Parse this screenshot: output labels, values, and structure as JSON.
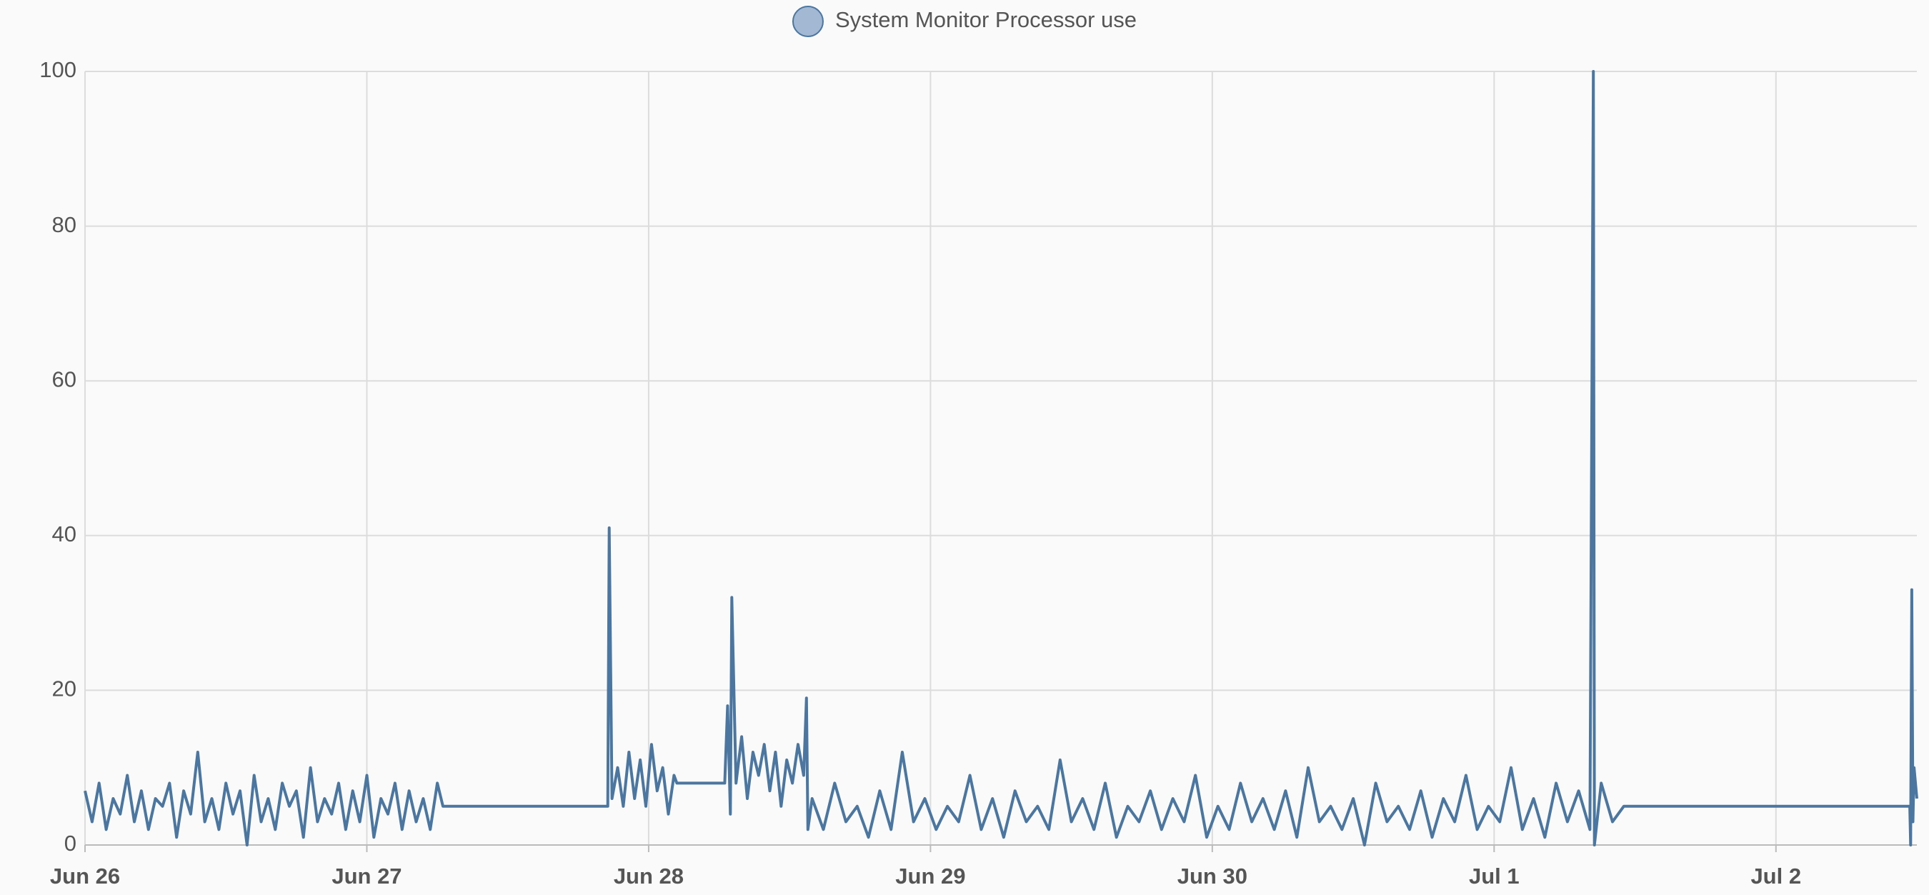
{
  "chart_data": {
    "type": "line",
    "series": [
      {
        "name": "System Monitor Processor use",
        "color": "#4a76a0",
        "x": [
          0,
          0.025,
          0.05,
          0.075,
          0.1,
          0.125,
          0.15,
          0.175,
          0.2,
          0.225,
          0.25,
          0.275,
          0.3,
          0.325,
          0.35,
          0.375,
          0.4,
          0.425,
          0.45,
          0.475,
          0.5,
          0.525,
          0.55,
          0.575,
          0.6,
          0.625,
          0.65,
          0.675,
          0.7,
          0.725,
          0.75,
          0.775,
          0.8,
          0.825,
          0.85,
          0.875,
          0.9,
          0.925,
          0.95,
          0.975,
          1,
          1.025,
          1.05,
          1.075,
          1.1,
          1.125,
          1.15,
          1.175,
          1.2,
          1.225,
          1.25,
          1.27,
          1.855,
          1.86,
          1.87,
          1.89,
          1.91,
          1.93,
          1.95,
          1.97,
          1.99,
          2.01,
          2.03,
          2.05,
          2.07,
          2.09,
          2.1,
          2.27,
          2.28,
          2.29,
          2.295,
          2.31,
          2.33,
          2.35,
          2.37,
          2.39,
          2.41,
          2.43,
          2.45,
          2.47,
          2.49,
          2.51,
          2.53,
          2.55,
          2.56,
          2.565,
          2.58,
          2.62,
          2.66,
          2.7,
          2.74,
          2.78,
          2.82,
          2.86,
          2.9,
          2.94,
          2.98,
          3.02,
          3.06,
          3.1,
          3.14,
          3.18,
          3.22,
          3.26,
          3.3,
          3.34,
          3.38,
          3.42,
          3.46,
          3.5,
          3.54,
          3.58,
          3.62,
          3.66,
          3.7,
          3.74,
          3.78,
          3.82,
          3.86,
          3.9,
          3.94,
          3.98,
          4.02,
          4.06,
          4.1,
          4.14,
          4.18,
          4.22,
          4.26,
          4.3,
          4.34,
          4.38,
          4.42,
          4.46,
          4.5,
          4.54,
          4.58,
          4.62,
          4.66,
          4.7,
          4.74,
          4.78,
          4.82,
          4.86,
          4.9,
          4.94,
          4.98,
          5.02,
          5.06,
          5.1,
          5.14,
          5.18,
          5.22,
          5.26,
          5.3,
          5.34,
          5.352,
          5.356,
          5.38,
          5.42,
          5.46,
          5.47,
          6.475,
          6.478,
          6.482,
          6.486,
          6.49,
          6.5
        ],
        "values": [
          7,
          3,
          8,
          2,
          6,
          4,
          9,
          3,
          7,
          2,
          6,
          5,
          8,
          1,
          7,
          4,
          12,
          3,
          6,
          2,
          8,
          4,
          7,
          0,
          9,
          3,
          6,
          2,
          8,
          5,
          7,
          1,
          10,
          3,
          6,
          4,
          8,
          2,
          7,
          3,
          9,
          1,
          6,
          4,
          8,
          2,
          7,
          3,
          6,
          2,
          8,
          5,
          5,
          41,
          6,
          10,
          5,
          12,
          6,
          11,
          5,
          13,
          7,
          10,
          4,
          9,
          8,
          8,
          18,
          4,
          32,
          8,
          14,
          6,
          12,
          9,
          13,
          7,
          12,
          5,
          11,
          8,
          13,
          9,
          19,
          2,
          6,
          2,
          8,
          3,
          5,
          1,
          7,
          2,
          12,
          3,
          6,
          2,
          5,
          3,
          9,
          2,
          6,
          1,
          7,
          3,
          5,
          2,
          11,
          3,
          6,
          2,
          8,
          1,
          5,
          3,
          7,
          2,
          6,
          3,
          9,
          1,
          5,
          2,
          8,
          3,
          6,
          2,
          7,
          1,
          10,
          3,
          5,
          2,
          6,
          0,
          8,
          3,
          5,
          2,
          7,
          1,
          6,
          3,
          9,
          2,
          5,
          3,
          10,
          2,
          6,
          1,
          8,
          3,
          7,
          2,
          100,
          0,
          8,
          3,
          5,
          5,
          5,
          0,
          33,
          3,
          10,
          6
        ]
      }
    ],
    "xlim": [
      0,
      6.5
    ],
    "xticks": [
      {
        "value": 0,
        "label": "Jun 26"
      },
      {
        "value": 1,
        "label": "Jun 27"
      },
      {
        "value": 2,
        "label": "Jun 28"
      },
      {
        "value": 3,
        "label": "Jun 29"
      },
      {
        "value": 4,
        "label": "Jun 30"
      },
      {
        "value": 5,
        "label": "Jul 1"
      },
      {
        "value": 6,
        "label": "Jul 2"
      }
    ],
    "ylim": [
      0,
      100
    ],
    "yticks": [
      0,
      20,
      40,
      60,
      80,
      100
    ],
    "grid": true
  }
}
